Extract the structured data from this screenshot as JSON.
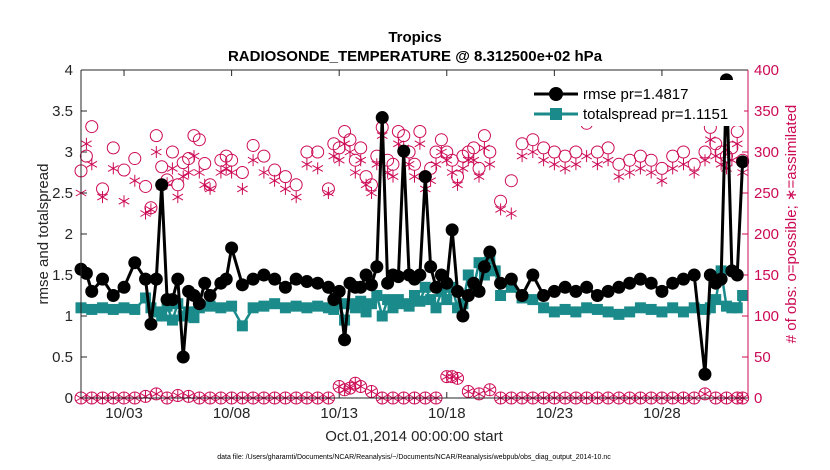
{
  "chart_data": {
    "type": "line",
    "title": "Tropics",
    "subtitle": "RADIOSONDE_TEMPERATURE @ 8.312500e+02 hPa",
    "xlabel": "Oct.01,2014 00:00:00 start",
    "ylabel": "rmse and totalspread",
    "ylabel_right": "# of obs: o=possible; ∗=assimilated",
    "footer": "data file: /Users/gharamti/Documents/NCAR/Reanalysis/~/Documents/NCAR/Reanalysis/webpub/obs_diag_output_2014-10.nc",
    "xlim": [
      1.0,
      32.0
    ],
    "ylim": [
      0,
      4
    ],
    "ylim_right": [
      0,
      400
    ],
    "x_ticks": [
      3,
      8,
      13,
      18,
      23,
      28
    ],
    "x_tick_labels": [
      "10/03",
      "10/08",
      "10/13",
      "10/18",
      "10/23",
      "10/28"
    ],
    "y_ticks": [
      0,
      0.5,
      1,
      1.5,
      2,
      2.5,
      3,
      3.5,
      4
    ],
    "y_tick_labels": [
      "0",
      "0.5",
      "1",
      "1.5",
      "2",
      "2.5",
      "3",
      "3.5",
      "4"
    ],
    "y_ticks_right": [
      0,
      50,
      100,
      150,
      200,
      250,
      300,
      350,
      400
    ],
    "y_tick_labels_right": [
      "0",
      "50",
      "100",
      "150",
      "200",
      "250",
      "300",
      "350",
      "400"
    ],
    "colors": {
      "rmse": "#000000",
      "totalspread": "#1a8a8a",
      "obs": "#cc0a55",
      "axis": "#262626"
    },
    "legend": [
      {
        "name": "rmse pr=1.4817",
        "series": "rmse"
      },
      {
        "name": "totalspread pr=1.1151",
        "series": "totalspread"
      }
    ],
    "series": [
      {
        "name": "rmse",
        "axis": "left",
        "x": [
          1.0,
          1.25,
          1.5,
          2.0,
          2.5,
          3.0,
          3.5,
          4.0,
          4.25,
          4.5,
          4.75,
          5.0,
          5.25,
          5.5,
          5.75,
          6.0,
          6.25,
          6.5,
          6.75,
          7.0,
          7.5,
          7.75,
          8.0,
          8.5,
          9.0,
          9.5,
          10.0,
          10.5,
          11.0,
          11.5,
          12.0,
          12.5,
          12.75,
          13.0,
          13.25,
          13.5,
          13.75,
          14.0,
          14.25,
          14.5,
          14.75,
          15.0,
          15.25,
          15.5,
          15.75,
          16.0,
          16.25,
          16.5,
          16.75,
          17.0,
          17.25,
          17.5,
          17.75,
          18.0,
          18.25,
          18.5,
          18.75,
          19.0,
          19.25,
          19.5,
          19.75,
          20.0,
          20.5,
          21.0,
          21.5,
          22.0,
          22.5,
          23.0,
          23.5,
          24.0,
          24.5,
          25.0,
          25.5,
          26.0,
          26.5,
          27.0,
          27.5,
          28.0,
          28.5,
          29.0,
          29.5,
          30.0,
          30.25,
          30.5,
          30.75,
          31.0,
          31.25,
          31.5,
          31.75
        ],
        "values": [
          1.57,
          1.52,
          1.3,
          1.45,
          1.25,
          1.35,
          1.65,
          1.45,
          0.9,
          1.45,
          2.6,
          1.2,
          1.2,
          1.45,
          0.5,
          1.3,
          1.25,
          1.15,
          1.4,
          1.25,
          1.4,
          1.45,
          1.83,
          1.38,
          1.45,
          1.5,
          1.45,
          1.35,
          1.45,
          1.42,
          1.4,
          1.35,
          1.2,
          1.3,
          0.71,
          1.4,
          1.35,
          1.35,
          1.5,
          1.38,
          1.6,
          3.42,
          1.4,
          1.5,
          1.48,
          3.01,
          1.5,
          1.45,
          1.5,
          2.7,
          1.6,
          1.35,
          1.5,
          1.4,
          2.05,
          1.3,
          1.0,
          1.25,
          1.4,
          1.3,
          1.6,
          1.78,
          1.4,
          1.45,
          1.25,
          1.5,
          1.25,
          1.3,
          1.35,
          1.3,
          1.35,
          1.25,
          1.3,
          1.35,
          1.4,
          1.45,
          1.4,
          1.3,
          1.4,
          1.45,
          1.5,
          0.29,
          1.5,
          1.4,
          1.45,
          3.88,
          1.55,
          1.5,
          2.88
        ]
      },
      {
        "name": "totalspread",
        "axis": "left",
        "x": [
          1.0,
          1.5,
          2.0,
          2.5,
          3.0,
          3.5,
          4.0,
          4.25,
          4.5,
          4.75,
          5.0,
          5.25,
          5.5,
          5.75,
          6.0,
          6.25,
          6.5,
          7.0,
          7.5,
          8.0,
          8.5,
          9.0,
          9.5,
          10.0,
          10.5,
          11.0,
          11.5,
          12.0,
          12.5,
          12.75,
          13.0,
          13.25,
          13.5,
          13.75,
          14.0,
          14.25,
          14.5,
          14.75,
          15.0,
          15.25,
          15.5,
          15.75,
          16.0,
          16.25,
          16.5,
          16.75,
          17.0,
          17.25,
          17.5,
          17.75,
          18.0,
          18.25,
          18.5,
          18.75,
          19.0,
          19.25,
          19.5,
          19.75,
          20.0,
          20.25,
          20.5,
          21.0,
          21.5,
          22.0,
          22.5,
          23.0,
          23.5,
          24.0,
          24.5,
          25.0,
          25.5,
          26.0,
          26.5,
          27.0,
          27.5,
          28.0,
          28.5,
          29.0,
          29.5,
          30.0,
          30.25,
          30.5,
          30.75,
          31.0,
          31.25,
          31.5,
          31.75
        ],
        "values": [
          1.1,
          1.08,
          1.1,
          1.08,
          1.1,
          1.08,
          1.22,
          1.1,
          1.05,
          1.0,
          1.12,
          0.95,
          1.15,
          1.0,
          1.05,
          0.98,
          1.1,
          1.12,
          1.1,
          1.12,
          0.88,
          1.1,
          1.12,
          1.15,
          1.1,
          1.12,
          1.1,
          1.12,
          1.1,
          1.08,
          1.15,
          0.95,
          1.15,
          1.1,
          1.18,
          1.05,
          1.15,
          1.25,
          1.0,
          1.2,
          1.1,
          1.2,
          1.15,
          1.12,
          1.25,
          1.18,
          1.35,
          1.2,
          1.1,
          1.3,
          1.2,
          1.35,
          1.1,
          1.15,
          1.5,
          1.35,
          1.65,
          1.5,
          1.7,
          1.55,
          1.25,
          1.35,
          1.22,
          1.2,
          1.1,
          1.05,
          1.08,
          1.05,
          1.1,
          1.08,
          1.05,
          1.02,
          1.05,
          1.1,
          1.08,
          1.05,
          1.1,
          1.05,
          1.1,
          1.08,
          1.1,
          1.2,
          1.55,
          1.12,
          1.1,
          1.1,
          1.25
        ]
      },
      {
        "name": "possible",
        "axis": "right",
        "marker": "circle",
        "x": [
          1.0,
          1.25,
          1.5,
          2.0,
          2.5,
          3.0,
          3.5,
          4.0,
          4.25,
          4.5,
          4.75,
          5.0,
          5.25,
          5.5,
          5.75,
          6.0,
          6.25,
          6.5,
          6.75,
          7.0,
          7.5,
          7.75,
          8.0,
          8.5,
          9.0,
          9.5,
          10.0,
          10.5,
          11.0,
          11.5,
          12.0,
          12.5,
          12.75,
          13.0,
          13.25,
          13.5,
          13.75,
          14.0,
          14.25,
          14.5,
          14.75,
          15.0,
          15.25,
          15.5,
          15.75,
          16.0,
          16.25,
          16.5,
          16.75,
          17.0,
          17.25,
          17.5,
          17.75,
          18.0,
          18.25,
          18.5,
          18.75,
          19.0,
          19.25,
          19.5,
          19.75,
          20.0,
          20.5,
          21.0,
          21.5,
          22.0,
          22.5,
          23.0,
          23.5,
          24.0,
          24.5,
          25.0,
          25.5,
          26.0,
          26.5,
          27.0,
          27.5,
          28.0,
          28.5,
          29.0,
          29.5,
          30.0,
          30.25,
          30.5,
          30.75,
          31.0,
          31.25,
          31.5,
          31.75
        ],
        "values": [
          277,
          295,
          331,
          255,
          305,
          278,
          292,
          258,
          232,
          320,
          282,
          266,
          300,
          260,
          287,
          292,
          320,
          315,
          286,
          260,
          290,
          295,
          290,
          275,
          308,
          295,
          278,
          270,
          260,
          300,
          300,
          255,
          310,
          305,
          325,
          315,
          290,
          305,
          270,
          260,
          295,
          330,
          290,
          285,
          325,
          320,
          300,
          285,
          325,
          270,
          280,
          300,
          315,
          300,
          290,
          270,
          295,
          300,
          305,
          280,
          320,
          300,
          240,
          265,
          310,
          315,
          305,
          300,
          295,
          300,
          335,
          300,
          305,
          285,
          290,
          295,
          290,
          280,
          295,
          300,
          285,
          300,
          330,
          310,
          300,
          295,
          305,
          325,
          290
        ]
      },
      {
        "name": "assimilated",
        "axis": "right",
        "marker": "star",
        "x": [
          1.0,
          1.25,
          1.5,
          2.0,
          2.5,
          3.0,
          3.5,
          4.0,
          4.25,
          4.5,
          4.75,
          5.0,
          5.25,
          5.5,
          5.75,
          6.0,
          6.25,
          6.5,
          6.75,
          7.0,
          7.5,
          7.75,
          8.0,
          8.5,
          9.0,
          9.5,
          10.0,
          10.5,
          11.0,
          11.5,
          12.0,
          12.5,
          12.75,
          13.0,
          13.25,
          13.5,
          13.75,
          14.0,
          14.25,
          14.5,
          14.75,
          15.0,
          15.25,
          15.5,
          15.75,
          16.0,
          16.25,
          16.5,
          16.75,
          17.0,
          17.25,
          17.5,
          17.75,
          18.0,
          18.25,
          18.5,
          18.75,
          19.0,
          19.25,
          19.5,
          19.75,
          20.0,
          20.5,
          21.0,
          21.5,
          22.0,
          22.5,
          23.0,
          23.5,
          24.0,
          24.5,
          25.0,
          25.5,
          26.0,
          26.5,
          27.0,
          27.5,
          28.0,
          28.5,
          29.0,
          29.5,
          30.0,
          30.25,
          30.5,
          30.75,
          31.0,
          31.25,
          31.5,
          31.75
        ],
        "values": [
          250,
          310,
          285,
          245,
          280,
          240,
          265,
          225,
          230,
          300,
          258,
          262,
          280,
          245,
          270,
          275,
          295,
          275,
          260,
          255,
          275,
          280,
          275,
          255,
          290,
          275,
          265,
          255,
          245,
          285,
          280,
          250,
          295,
          290,
          310,
          300,
          275,
          290,
          260,
          250,
          285,
          320,
          275,
          270,
          310,
          305,
          285,
          270,
          310,
          255,
          265,
          285,
          300,
          290,
          275,
          260,
          280,
          290,
          290,
          270,
          305,
          285,
          230,
          225,
          295,
          300,
          290,
          285,
          280,
          285,
          295,
          285,
          290,
          270,
          275,
          280,
          275,
          265,
          280,
          285,
          275,
          290,
          315,
          295,
          285,
          280,
          290,
          310,
          275
        ]
      },
      {
        "name": "possible_low",
        "axis": "right",
        "marker": "circle",
        "x": [
          1.0,
          1.5,
          2.0,
          2.5,
          3.0,
          3.5,
          4.0,
          4.5,
          5.0,
          5.5,
          6.0,
          6.5,
          7.0,
          7.5,
          8.0,
          8.5,
          9.0,
          9.5,
          10.0,
          10.5,
          11.0,
          11.5,
          12.0,
          12.5,
          13.0,
          13.25,
          13.5,
          13.75,
          14.0,
          14.5,
          15.0,
          15.5,
          16.0,
          16.5,
          17.0,
          17.5,
          18.0,
          18.25,
          18.5,
          19.0,
          19.5,
          20.0,
          20.5,
          21.0,
          21.5,
          22.0,
          22.5,
          23.0,
          23.5,
          24.0,
          24.5,
          25.0,
          25.5,
          26.0,
          26.5,
          27.0,
          27.5,
          28.0,
          28.5,
          29.0,
          29.5,
          30.0,
          30.5,
          31.0,
          31.5,
          31.75
        ],
        "values": [
          0,
          0,
          0,
          0,
          0,
          0,
          2,
          5,
          0,
          3,
          2,
          0,
          0,
          0,
          0,
          0,
          0,
          0,
          0,
          0,
          0,
          0,
          0,
          0,
          14,
          10,
          12,
          18,
          14,
          8,
          0,
          0,
          0,
          0,
          0,
          0,
          26,
          26,
          24,
          8,
          5,
          10,
          0,
          0,
          0,
          0,
          0,
          0,
          0,
          0,
          0,
          0,
          0,
          0,
          0,
          0,
          0,
          0,
          0,
          0,
          0,
          5,
          0,
          0,
          0,
          0
        ]
      }
    ]
  }
}
